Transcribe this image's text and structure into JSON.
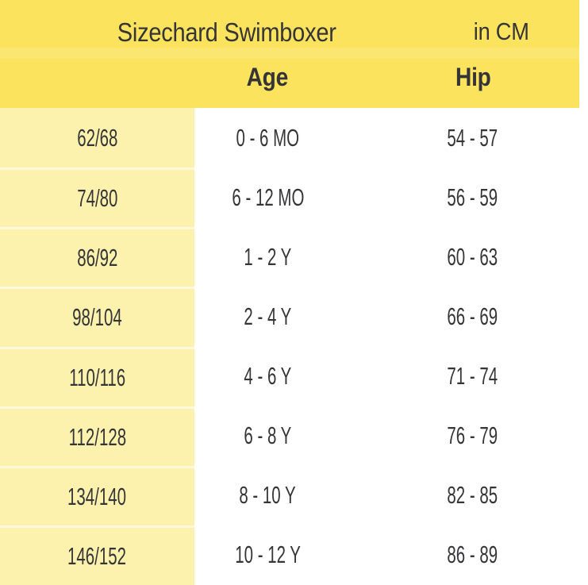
{
  "chart_data": {
    "type": "table",
    "title": "Sizechard Swimboxer",
    "unit": "in CM",
    "columns": [
      "",
      "Age",
      "Hip"
    ],
    "rows": [
      {
        "size": "62/68",
        "age": "0 - 6 MO",
        "hip": "54 - 57"
      },
      {
        "size": "74/80",
        "age": "6 - 12 MO",
        "hip": "56 - 59"
      },
      {
        "size": "86/92",
        "age": "1 - 2 Y",
        "hip": "60 - 63"
      },
      {
        "size": "98/104",
        "age": "2 - 4 Y",
        "hip": "66 - 69"
      },
      {
        "size": "110/116",
        "age": "4 - 6 Y",
        "hip": "71 - 74"
      },
      {
        "size": "112/128",
        "age": "6 - 8 Y",
        "hip": "76 - 79"
      },
      {
        "size": "134/140",
        "age": "8 - 10 Y",
        "hip": "82 - 85"
      },
      {
        "size": "146/152",
        "age": "10 - 12 Y",
        "hip": "86 - 89"
      }
    ]
  },
  "colors": {
    "header_yellow": "#fbe35e",
    "column_yellow": "#fcf2ae",
    "text": "#353537",
    "background": "#ffffff"
  }
}
